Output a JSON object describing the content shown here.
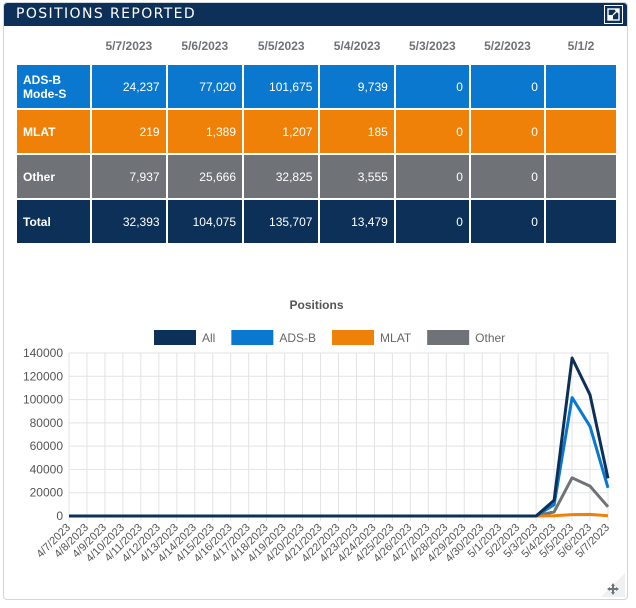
{
  "header": {
    "title": "POSITIONS REPORTED"
  },
  "table": {
    "columns": [
      "5/7/2023",
      "5/6/2023",
      "5/5/2023",
      "5/4/2023",
      "5/3/2023",
      "5/2/2023",
      "5/1/2"
    ],
    "rows": [
      {
        "key": "adsb",
        "label_line1": "ADS-B",
        "label_line2": "Mode-S",
        "values": [
          "24,237",
          "77,020",
          "101,675",
          "9,739",
          "0",
          "0",
          ""
        ]
      },
      {
        "key": "mlat",
        "label_line1": "MLAT",
        "label_line2": "",
        "values": [
          "219",
          "1,389",
          "1,207",
          "185",
          "0",
          "0",
          ""
        ]
      },
      {
        "key": "other",
        "label_line1": "Other",
        "label_line2": "",
        "values": [
          "7,937",
          "25,666",
          "32,825",
          "3,555",
          "0",
          "0",
          ""
        ]
      },
      {
        "key": "total",
        "label_line1": "Total",
        "label_line2": "",
        "values": [
          "32,393",
          "104,075",
          "135,707",
          "13,479",
          "0",
          "0",
          ""
        ]
      }
    ]
  },
  "chart_data": {
    "type": "line",
    "title": "Positions",
    "x": [
      "4/7/2023",
      "4/8/2023",
      "4/9/2023",
      "4/10/2023",
      "4/11/2023",
      "4/12/2023",
      "4/13/2023",
      "4/14/2023",
      "4/15/2023",
      "4/16/2023",
      "4/17/2023",
      "4/18/2023",
      "4/19/2023",
      "4/20/2023",
      "4/21/2023",
      "4/22/2023",
      "4/23/2023",
      "4/24/2023",
      "4/25/2023",
      "4/26/2023",
      "4/27/2023",
      "4/28/2023",
      "4/29/2023",
      "4/30/2023",
      "5/1/2023",
      "5/2/2023",
      "5/3/2023",
      "5/4/2023",
      "5/5/2023",
      "5/6/2023",
      "5/7/2023"
    ],
    "series": [
      {
        "name": "All",
        "color": "#0c3057",
        "values": [
          0,
          0,
          0,
          0,
          0,
          0,
          0,
          0,
          0,
          0,
          0,
          0,
          0,
          0,
          0,
          0,
          0,
          0,
          0,
          0,
          0,
          0,
          0,
          0,
          0,
          0,
          0,
          13479,
          135707,
          104075,
          32393
        ]
      },
      {
        "name": "ADS-B",
        "color": "#0b78d0",
        "values": [
          0,
          0,
          0,
          0,
          0,
          0,
          0,
          0,
          0,
          0,
          0,
          0,
          0,
          0,
          0,
          0,
          0,
          0,
          0,
          0,
          0,
          0,
          0,
          0,
          0,
          0,
          0,
          9739,
          101675,
          77020,
          24237
        ]
      },
      {
        "name": "MLAT",
        "color": "#ef8108",
        "values": [
          0,
          0,
          0,
          0,
          0,
          0,
          0,
          0,
          0,
          0,
          0,
          0,
          0,
          0,
          0,
          0,
          0,
          0,
          0,
          0,
          0,
          0,
          0,
          0,
          0,
          0,
          0,
          185,
          1207,
          1389,
          219
        ]
      },
      {
        "name": "Other",
        "color": "#6f7276",
        "values": [
          0,
          0,
          0,
          0,
          0,
          0,
          0,
          0,
          0,
          0,
          0,
          0,
          0,
          0,
          0,
          0,
          0,
          0,
          0,
          0,
          0,
          0,
          0,
          0,
          0,
          0,
          0,
          3555,
          32825,
          25666,
          7937
        ]
      }
    ],
    "y_ticks": [
      "0",
      "20000",
      "40000",
      "60000",
      "80000",
      "100000",
      "120000",
      "140000"
    ],
    "ylim": [
      0,
      140000
    ],
    "grid": true,
    "legend": "top-center"
  },
  "icons": {
    "expand": "expand-icon",
    "resize": "resize-handle-icon"
  }
}
